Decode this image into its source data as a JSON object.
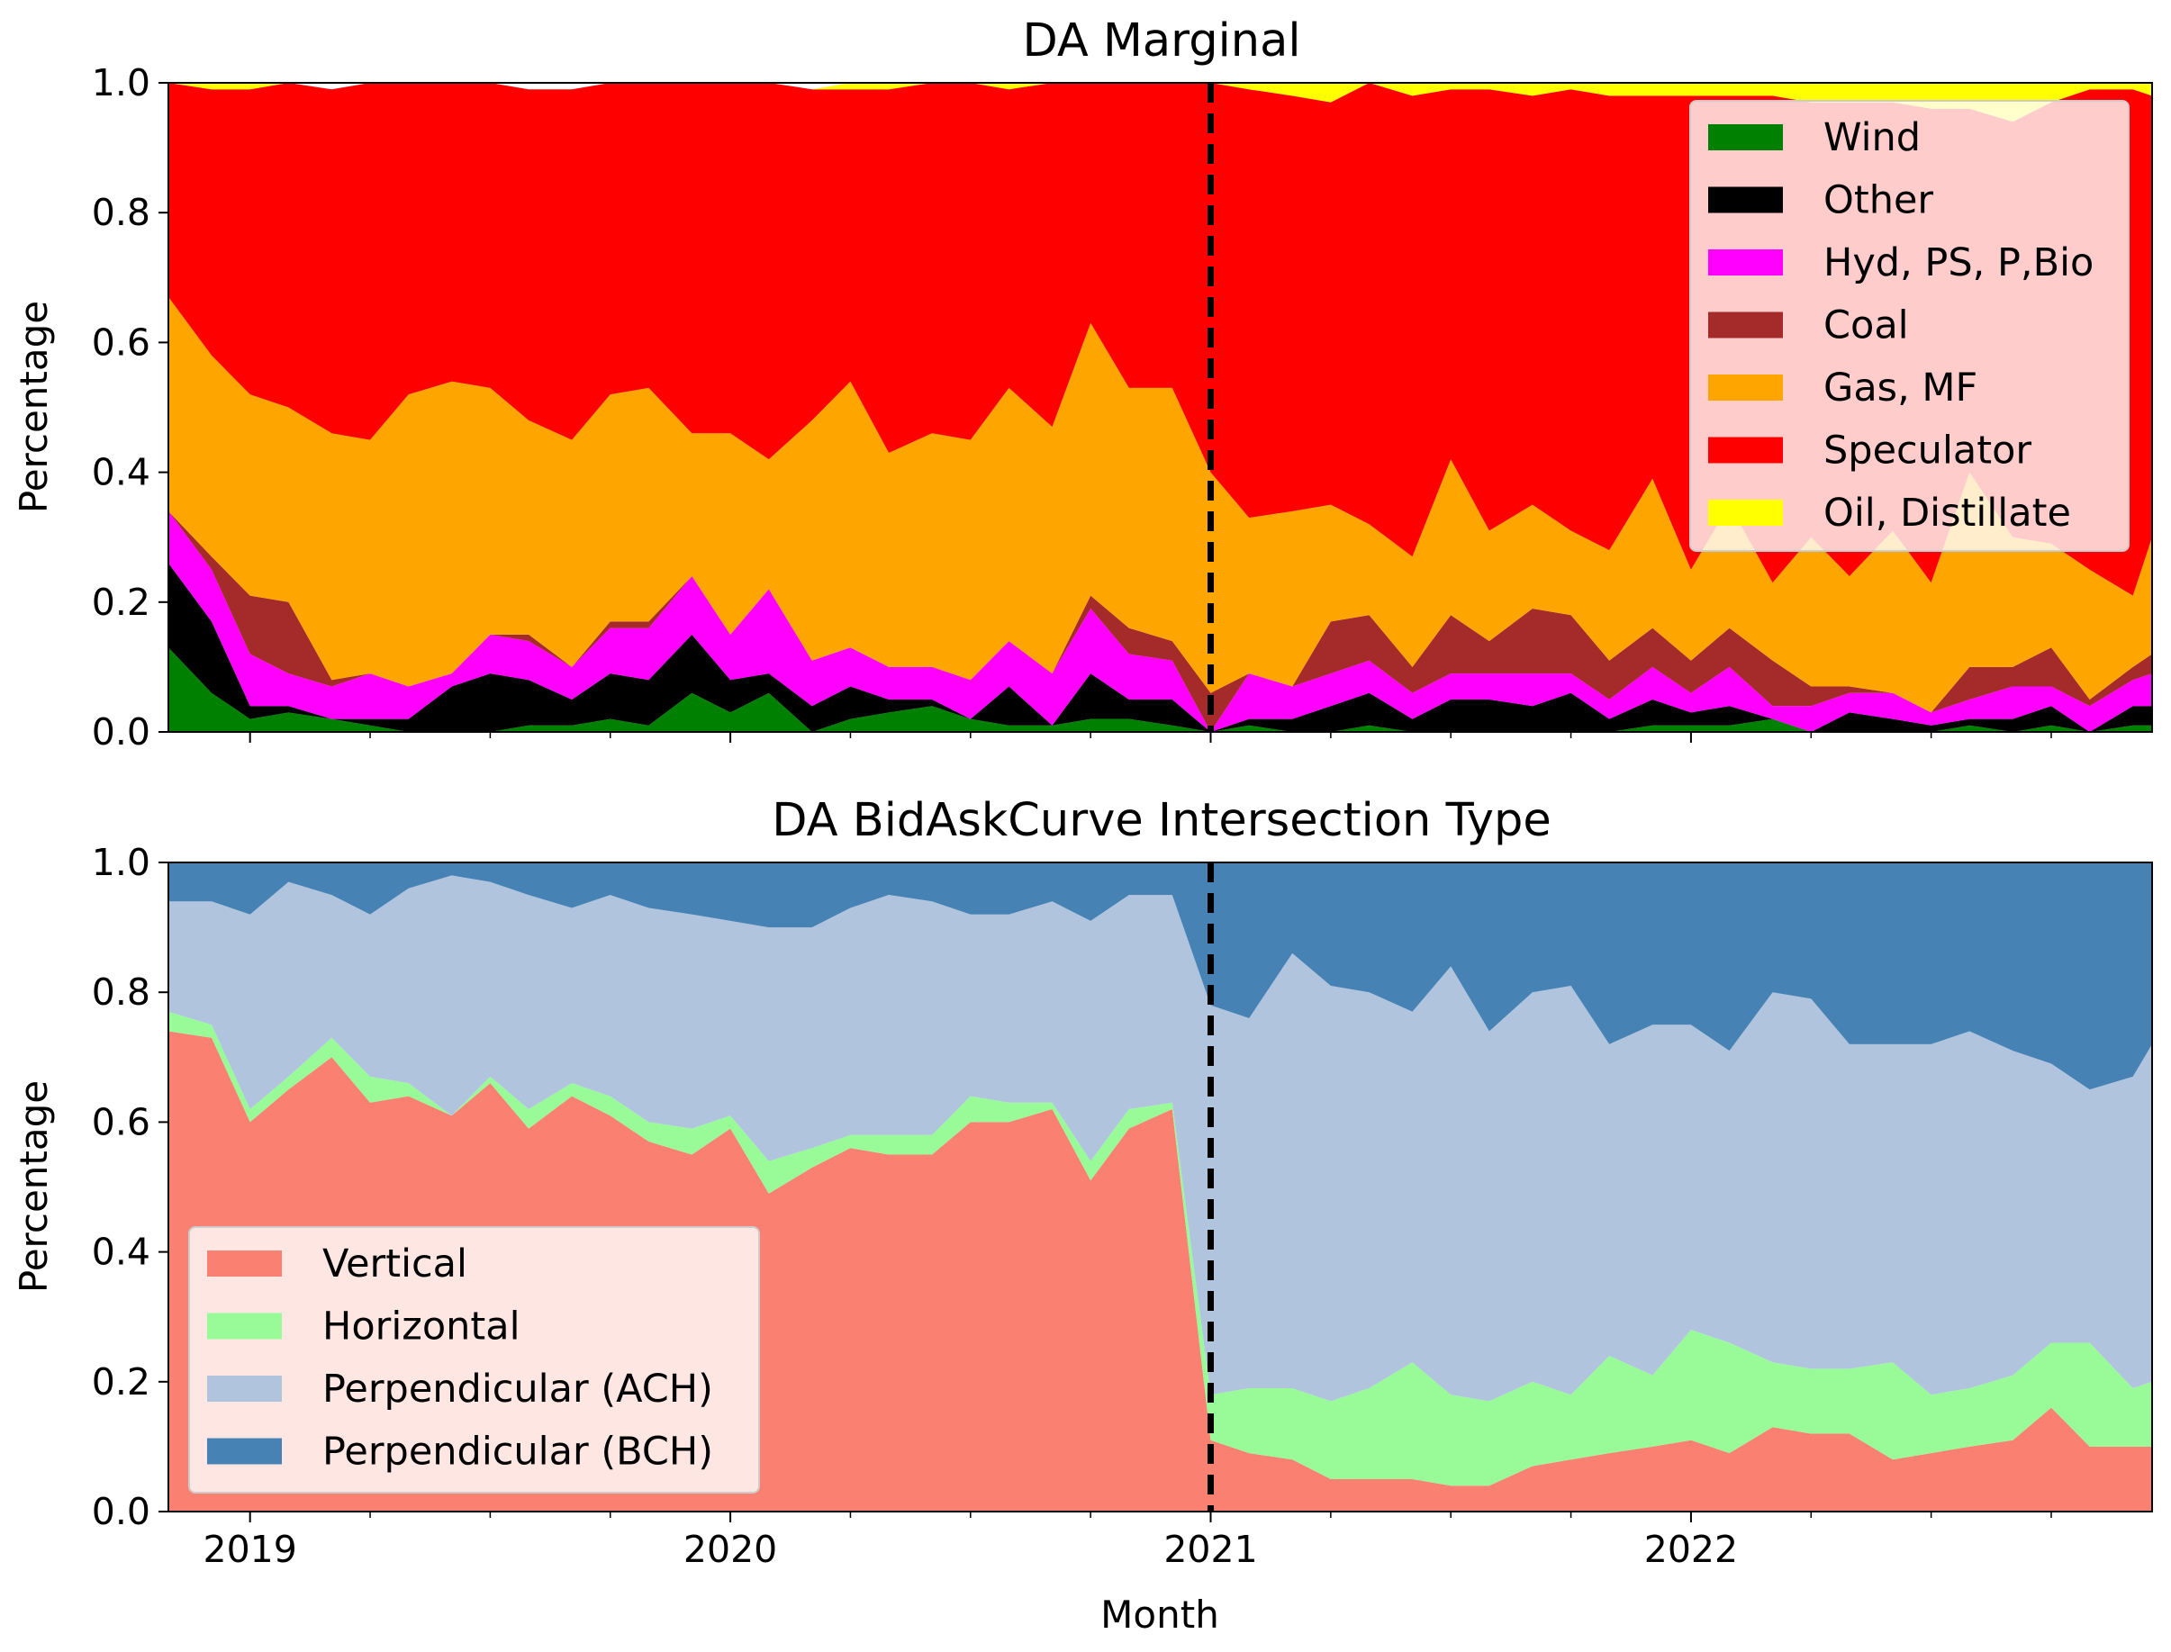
{
  "figure": {
    "xlabel": "Month"
  },
  "chart_data": [
    {
      "type": "area",
      "stacked": true,
      "title": "DA Marginal",
      "xlabel": "",
      "ylabel": "Percentage",
      "xlim": [
        2018.83,
        2022.96
      ],
      "ylim": [
        0,
        1
      ],
      "yticks": [
        "0.0",
        "0.2",
        "0.4",
        "0.6",
        "0.8",
        "1.0"
      ],
      "xticks": [
        {
          "value": 2019,
          "label": "2019"
        },
        {
          "value": 2020,
          "label": "2020"
        },
        {
          "value": 2021,
          "label": "2021"
        },
        {
          "value": 2022,
          "label": "2022"
        }
      ],
      "minor_xticks": [
        2019.25,
        2019.5,
        2019.75,
        2020.25,
        2020.5,
        2020.75,
        2021.25,
        2021.5,
        2021.75,
        2022.25,
        2022.5,
        2022.75
      ],
      "vline": {
        "x": 2021.0,
        "style": "dashed",
        "color": "#000000"
      },
      "legend_position": "top-right",
      "x": [
        2018.83,
        2018.92,
        2019.0,
        2019.08,
        2019.17,
        2019.25,
        2019.33,
        2019.42,
        2019.5,
        2019.58,
        2019.67,
        2019.75,
        2019.83,
        2019.92,
        2020.0,
        2020.08,
        2020.17,
        2020.25,
        2020.33,
        2020.42,
        2020.5,
        2020.58,
        2020.67,
        2020.75,
        2020.83,
        2020.92,
        2021.0,
        2021.08,
        2021.17,
        2021.25,
        2021.33,
        2021.42,
        2021.5,
        2021.58,
        2021.67,
        2021.75,
        2021.83,
        2021.92,
        2022.0,
        2022.08,
        2022.17,
        2022.25,
        2022.33,
        2022.42,
        2022.5,
        2022.58,
        2022.67,
        2022.75,
        2022.83,
        2022.92,
        2022.96
      ],
      "series": [
        {
          "name": "Wind",
          "color": "#008000",
          "values": [
            0.13,
            0.06,
            0.02,
            0.03,
            0.02,
            0.01,
            0.0,
            0.0,
            0.0,
            0.01,
            0.01,
            0.02,
            0.01,
            0.06,
            0.03,
            0.06,
            0.0,
            0.02,
            0.03,
            0.04,
            0.02,
            0.01,
            0.01,
            0.02,
            0.02,
            0.01,
            0.0,
            0.01,
            0.0,
            0.0,
            0.01,
            0.0,
            0.0,
            0.0,
            0.0,
            0.0,
            0.0,
            0.01,
            0.01,
            0.01,
            0.02,
            0.0,
            0.0,
            0.0,
            0.0,
            0.01,
            0.0,
            0.01,
            0.0,
            0.01,
            0.01
          ]
        },
        {
          "name": "Other",
          "color": "#000000",
          "values": [
            0.13,
            0.11,
            0.02,
            0.01,
            0.0,
            0.01,
            0.02,
            0.07,
            0.09,
            0.07,
            0.04,
            0.07,
            0.07,
            0.09,
            0.05,
            0.03,
            0.04,
            0.05,
            0.02,
            0.01,
            0.0,
            0.06,
            0.0,
            0.07,
            0.03,
            0.04,
            0.0,
            0.01,
            0.02,
            0.04,
            0.05,
            0.02,
            0.05,
            0.05,
            0.04,
            0.06,
            0.02,
            0.04,
            0.02,
            0.03,
            0.0,
            0.0,
            0.03,
            0.02,
            0.01,
            0.01,
            0.02,
            0.03,
            0.0,
            0.03,
            0.03
          ]
        },
        {
          "name": "Hyd, PS, P,Bio",
          "color": "#ff00ff",
          "values": [
            0.08,
            0.08,
            0.08,
            0.05,
            0.05,
            0.07,
            0.05,
            0.02,
            0.06,
            0.06,
            0.05,
            0.07,
            0.08,
            0.09,
            0.07,
            0.13,
            0.07,
            0.06,
            0.05,
            0.05,
            0.06,
            0.07,
            0.08,
            0.1,
            0.07,
            0.06,
            0.0,
            0.07,
            0.05,
            0.05,
            0.05,
            0.04,
            0.04,
            0.04,
            0.05,
            0.03,
            0.03,
            0.05,
            0.03,
            0.06,
            0.02,
            0.04,
            0.03,
            0.04,
            0.02,
            0.03,
            0.05,
            0.03,
            0.04,
            0.04,
            0.05
          ]
        },
        {
          "name": "Coal",
          "color": "#a52a2a",
          "values": [
            0.0,
            0.02,
            0.09,
            0.11,
            0.01,
            0.0,
            0.0,
            0.0,
            0.0,
            0.01,
            0.0,
            0.01,
            0.01,
            0.0,
            0.0,
            0.0,
            0.0,
            0.0,
            0.0,
            0.0,
            0.0,
            0.0,
            0.0,
            0.02,
            0.04,
            0.03,
            0.06,
            0.0,
            0.0,
            0.08,
            0.07,
            0.04,
            0.09,
            0.05,
            0.1,
            0.09,
            0.06,
            0.06,
            0.05,
            0.06,
            0.07,
            0.03,
            0.01,
            0.0,
            0.0,
            0.05,
            0.03,
            0.06,
            0.01,
            0.02,
            0.03
          ]
        },
        {
          "name": "Gas, MF",
          "color": "#ffa500",
          "values": [
            0.33,
            0.31,
            0.31,
            0.3,
            0.38,
            0.36,
            0.45,
            0.45,
            0.38,
            0.33,
            0.35,
            0.35,
            0.36,
            0.22,
            0.31,
            0.2,
            0.37,
            0.41,
            0.33,
            0.36,
            0.37,
            0.39,
            0.38,
            0.42,
            0.37,
            0.39,
            0.34,
            0.24,
            0.27,
            0.18,
            0.14,
            0.17,
            0.24,
            0.17,
            0.16,
            0.13,
            0.17,
            0.23,
            0.14,
            0.19,
            0.12,
            0.23,
            0.17,
            0.25,
            0.2,
            0.3,
            0.2,
            0.16,
            0.2,
            0.11,
            0.18
          ]
        },
        {
          "name": "Speculator",
          "color": "#ff0000",
          "values": [
            0.33,
            0.41,
            0.47,
            0.5,
            0.53,
            0.55,
            0.48,
            0.46,
            0.47,
            0.51,
            0.54,
            0.48,
            0.47,
            0.54,
            0.54,
            0.58,
            0.51,
            0.45,
            0.56,
            0.54,
            0.55,
            0.46,
            0.53,
            0.37,
            0.47,
            0.47,
            0.6,
            0.66,
            0.64,
            0.62,
            0.69,
            0.71,
            0.57,
            0.68,
            0.63,
            0.68,
            0.7,
            0.59,
            0.73,
            0.63,
            0.75,
            0.67,
            0.73,
            0.66,
            0.73,
            0.56,
            0.64,
            0.68,
            0.74,
            0.78,
            0.68
          ]
        },
        {
          "name": "Oil, Distillate",
          "color": "#ffff00",
          "values": [
            0.0,
            0.01,
            0.01,
            0.0,
            0.0,
            0.0,
            0.0,
            0.0,
            0.0,
            0.0,
            0.0,
            0.0,
            0.0,
            0.0,
            0.0,
            0.0,
            0.0,
            0.01,
            0.01,
            0.0,
            0.0,
            0.01,
            0.0,
            0.0,
            0.0,
            0.0,
            0.0,
            0.01,
            0.02,
            0.03,
            0.0,
            0.02,
            0.01,
            0.01,
            0.02,
            0.01,
            0.02,
            0.02,
            0.02,
            0.02,
            0.02,
            0.03,
            0.03,
            0.03,
            0.04,
            0.04,
            0.06,
            0.03,
            0.01,
            0.01,
            0.02
          ]
        }
      ]
    },
    {
      "type": "area",
      "stacked": true,
      "title": "DA BidAskCurve Intersection Type",
      "xlabel": "Month",
      "ylabel": "Percentage",
      "xlim": [
        2018.83,
        2022.96
      ],
      "ylim": [
        0,
        1
      ],
      "yticks": [
        "0.0",
        "0.2",
        "0.4",
        "0.6",
        "0.8",
        "1.0"
      ],
      "xticks": [
        {
          "value": 2019,
          "label": "2019"
        },
        {
          "value": 2020,
          "label": "2020"
        },
        {
          "value": 2021,
          "label": "2021"
        },
        {
          "value": 2022,
          "label": "2022"
        }
      ],
      "minor_xticks": [
        2019.25,
        2019.5,
        2019.75,
        2020.25,
        2020.5,
        2020.75,
        2021.25,
        2021.5,
        2021.75,
        2022.25,
        2022.5,
        2022.75
      ],
      "vline": {
        "x": 2021.0,
        "style": "dashed",
        "color": "#000000"
      },
      "legend_position": "bottom-left",
      "x": [
        2018.83,
        2018.92,
        2019.0,
        2019.08,
        2019.17,
        2019.25,
        2019.33,
        2019.42,
        2019.5,
        2019.58,
        2019.67,
        2019.75,
        2019.83,
        2019.92,
        2020.0,
        2020.08,
        2020.17,
        2020.25,
        2020.33,
        2020.42,
        2020.5,
        2020.58,
        2020.67,
        2020.75,
        2020.83,
        2020.92,
        2021.0,
        2021.08,
        2021.17,
        2021.25,
        2021.33,
        2021.42,
        2021.5,
        2021.58,
        2021.67,
        2021.75,
        2021.83,
        2021.92,
        2022.0,
        2022.08,
        2022.17,
        2022.25,
        2022.33,
        2022.42,
        2022.5,
        2022.58,
        2022.67,
        2022.75,
        2022.83,
        2022.92,
        2022.96
      ],
      "series": [
        {
          "name": "Vertical",
          "color": "#fa8072",
          "values": [
            0.74,
            0.73,
            0.6,
            0.65,
            0.7,
            0.63,
            0.64,
            0.61,
            0.66,
            0.59,
            0.64,
            0.61,
            0.57,
            0.55,
            0.59,
            0.49,
            0.53,
            0.56,
            0.55,
            0.55,
            0.6,
            0.6,
            0.62,
            0.51,
            0.59,
            0.62,
            0.11,
            0.09,
            0.08,
            0.05,
            0.05,
            0.05,
            0.04,
            0.04,
            0.07,
            0.08,
            0.09,
            0.1,
            0.11,
            0.09,
            0.13,
            0.12,
            0.12,
            0.08,
            0.09,
            0.1,
            0.11,
            0.16,
            0.1,
            0.1,
            0.1
          ]
        },
        {
          "name": "Horizontal",
          "color": "#98fb98",
          "values": [
            0.03,
            0.02,
            0.02,
            0.02,
            0.03,
            0.04,
            0.02,
            0.0,
            0.01,
            0.03,
            0.02,
            0.03,
            0.03,
            0.04,
            0.02,
            0.05,
            0.03,
            0.02,
            0.03,
            0.03,
            0.04,
            0.03,
            0.01,
            0.03,
            0.03,
            0.01,
            0.07,
            0.1,
            0.11,
            0.12,
            0.14,
            0.18,
            0.14,
            0.13,
            0.13,
            0.1,
            0.15,
            0.11,
            0.17,
            0.17,
            0.1,
            0.1,
            0.1,
            0.15,
            0.09,
            0.09,
            0.1,
            0.1,
            0.16,
            0.09,
            0.1
          ]
        },
        {
          "name": "Perpendicular (ACH)",
          "color": "#b0c4de",
          "values": [
            0.17,
            0.19,
            0.3,
            0.3,
            0.22,
            0.25,
            0.3,
            0.37,
            0.3,
            0.33,
            0.27,
            0.31,
            0.33,
            0.33,
            0.3,
            0.36,
            0.34,
            0.35,
            0.37,
            0.36,
            0.28,
            0.29,
            0.31,
            0.37,
            0.33,
            0.32,
            0.6,
            0.57,
            0.67,
            0.64,
            0.61,
            0.54,
            0.66,
            0.57,
            0.6,
            0.63,
            0.48,
            0.54,
            0.47,
            0.45,
            0.57,
            0.57,
            0.5,
            0.49,
            0.54,
            0.55,
            0.5,
            0.43,
            0.39,
            0.48,
            0.52
          ]
        },
        {
          "name": "Perpendicular (BCH)",
          "color": "#4682b4",
          "values": [
            0.06,
            0.06,
            0.08,
            0.03,
            0.05,
            0.08,
            0.04,
            0.02,
            0.03,
            0.05,
            0.07,
            0.05,
            0.07,
            0.08,
            0.09,
            0.1,
            0.1,
            0.07,
            0.05,
            0.06,
            0.08,
            0.08,
            0.06,
            0.09,
            0.05,
            0.05,
            0.22,
            0.24,
            0.14,
            0.19,
            0.2,
            0.23,
            0.16,
            0.26,
            0.2,
            0.19,
            0.28,
            0.25,
            0.25,
            0.29,
            0.2,
            0.21,
            0.28,
            0.28,
            0.28,
            0.26,
            0.29,
            0.31,
            0.35,
            0.33,
            0.28
          ]
        }
      ]
    }
  ]
}
